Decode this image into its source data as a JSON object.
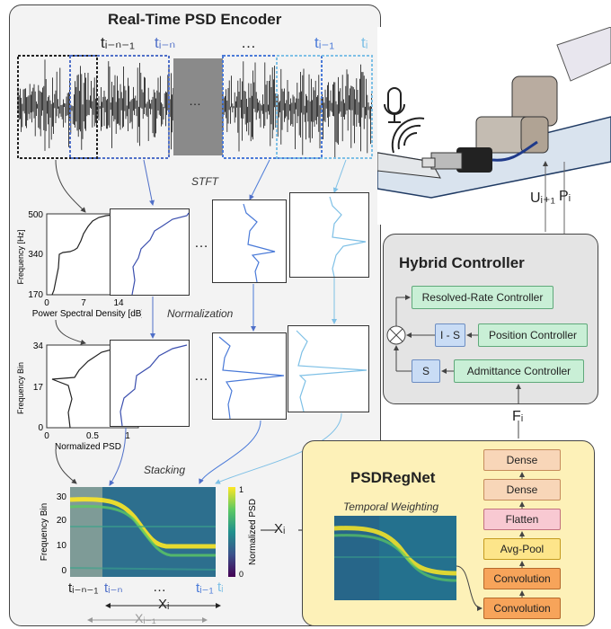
{
  "encoder": {
    "title": "Real-Time PSD Encoder",
    "window_labels": [
      "tᵢ₋ₙ₋₁",
      "tᵢ₋ₙ",
      "…",
      "tᵢ₋₁",
      "tᵢ"
    ],
    "ellipsis": "…",
    "stft_label": "STFT",
    "normalization_label": "Normalization",
    "stacking_label": "Stacking",
    "psd_plot": {
      "ylabel": "Frequency [Hz]",
      "xlabel": "Power Spectral Density [dB]",
      "yticks": [
        "500",
        "340",
        "170"
      ],
      "xticks": [
        "0",
        "7",
        "14"
      ]
    },
    "norm_plot": {
      "ylabel": "Frequency Bin",
      "xlabel": "Normalized PSD",
      "yticks": [
        "34",
        "17",
        "0"
      ],
      "xticks": [
        "0",
        "0.5",
        "1"
      ]
    },
    "heatmap": {
      "ylabel": "Frequency Bin",
      "yticks": [
        "30",
        "20",
        "10",
        "0"
      ],
      "colorbar_label": "Normalized PSD",
      "colorbar_ticks": [
        "1",
        "0"
      ],
      "time_labels": [
        "tᵢ₋ₙ₋₁",
        "tᵢ₋ₙ",
        "…",
        "tᵢ₋₁",
        "tᵢ"
      ],
      "xi_label": "Xᵢ",
      "xi_prev_label": "Xᵢ₋₁"
    }
  },
  "xi_arrow_label": "Xᵢ",
  "robot": {
    "u_label": "Uᵢ₊₁",
    "p_label": "Pᵢ"
  },
  "controller": {
    "title": "Hybrid Controller",
    "resolved_rate": "Resolved-Rate Controller",
    "position": "Position Controller",
    "admittance": "Admittance Controller",
    "i_minus_s": "I - S",
    "s": "S",
    "f_label": "Fᵢ"
  },
  "regnet": {
    "title": "PSDRegNet",
    "temporal_weighting": "Temporal Weighting",
    "layers": [
      "Dense",
      "Dense",
      "Flatten",
      "Avg-Pool",
      "Convolution",
      "Convolution"
    ]
  },
  "colors": {
    "encoder_bg": "#f3f3f3",
    "controller_bg": "#e4e4e4",
    "regnet_bg": "#fdf1b8",
    "window_dark": "#222222",
    "window_blue": "#4f6fc8",
    "window_mid": "#4a7ad8",
    "window_light": "#7ec0e6"
  }
}
